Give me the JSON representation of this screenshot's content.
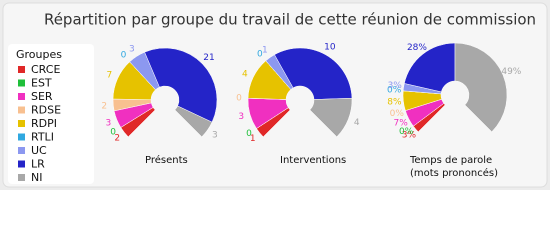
{
  "title": "Répartition par groupe du travail de cette réunion de commission",
  "legend": {
    "title": "Groupes",
    "categories": [
      "CRCE",
      "EST",
      "SER",
      "RDSE",
      "RDPI",
      "RTLI",
      "UC",
      "LR",
      "NI"
    ],
    "colors": [
      "#e02828",
      "#1fbf3a",
      "#f030c0",
      "#f8c090",
      "#e6c200",
      "#30a8e0",
      "#8c98f0",
      "#2424c8",
      "#a8a8a8"
    ]
  },
  "chart_data": [
    {
      "type": "pie",
      "label": [
        "Présents"
      ],
      "values": [
        2,
        0,
        3,
        2,
        7,
        0,
        3,
        21,
        3
      ]
    },
    {
      "type": "pie",
      "label": [
        "Interventions"
      ],
      "values": [
        1,
        0,
        3,
        0,
        4,
        0,
        1,
        10,
        4
      ]
    },
    {
      "type": "pie",
      "label": [
        "Temps de parole",
        "(mots prononcés)"
      ],
      "values": [
        3,
        0,
        7,
        0,
        8,
        0,
        3,
        28,
        49
      ],
      "value_labels": [
        "3%",
        "0%",
        "7%",
        "0%",
        "8%",
        "0%",
        "3%",
        "28%",
        "49%"
      ]
    }
  ]
}
